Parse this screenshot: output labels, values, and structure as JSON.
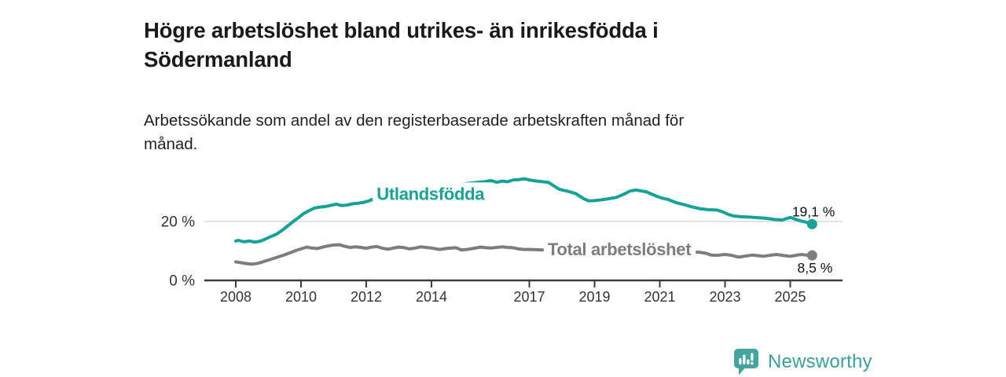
{
  "header": {
    "title_lines": [
      "Högre arbetslöshet bland utrikes- än inrikesfödda i",
      "Södermanland"
    ],
    "subtitle_lines": [
      "Arbetssökande som andel av den registerbaserade arbetskraften månad för",
      "månad."
    ]
  },
  "footer": {
    "brand": "Newsworthy",
    "logo_icon": "newsworthy-speech-bubble-bar-chart-icon",
    "brand_color": "#38a199"
  },
  "chart_data": {
    "type": "line",
    "title": "Högre arbetslöshet bland utrikes- än inrikesfödda i Södermanland",
    "subtitle": "Arbetssökande som andel av den registerbaserade arbetskraften månad för månad.",
    "unit": "%",
    "grid": "horizontal-only",
    "legend_position": "inline-labels-on-lines",
    "colors": {
      "accent_teal": "#16a296",
      "neutral_gray": "#7d7d7d",
      "axis": "#3d3d3d",
      "gridline": "#d8d8d8",
      "value_label": "#111111"
    },
    "x_axis": {
      "range_years": [
        2006.9,
        2026.6
      ],
      "ticks": [
        {
          "year": 2008,
          "label": "2008"
        },
        {
          "year": 2010,
          "label": "2010"
        },
        {
          "year": 2012,
          "label": "2012"
        },
        {
          "year": 2014,
          "label": "2014"
        },
        {
          "year": 2017,
          "label": "2017"
        },
        {
          "year": 2019,
          "label": "2019"
        },
        {
          "year": 2021,
          "label": "2021"
        },
        {
          "year": 2023,
          "label": "2023"
        },
        {
          "year": 2025,
          "label": "2025"
        }
      ]
    },
    "y_axis": {
      "range": [
        0,
        40
      ],
      "ticks": [
        {
          "value": 0,
          "label": "0 %"
        },
        {
          "value": 20,
          "label": "20 %"
        }
      ]
    },
    "series": [
      {
        "name": "Utlandsfödda",
        "color": "#16a296",
        "end_value": 19.1,
        "end_label": "19,1 %",
        "end_label_side": "above",
        "label_anchor": {
          "year": 2013.97,
          "value": 29.4
        },
        "points": [
          [
            2008.0,
            13.4
          ],
          [
            2008.08,
            13.6
          ],
          [
            2008.25,
            13.1
          ],
          [
            2008.42,
            13.4
          ],
          [
            2008.58,
            13.0
          ],
          [
            2008.75,
            13.3
          ],
          [
            2008.92,
            14.1
          ],
          [
            2009.08,
            14.9
          ],
          [
            2009.25,
            15.7
          ],
          [
            2009.42,
            17.0
          ],
          [
            2009.58,
            18.4
          ],
          [
            2009.75,
            19.9
          ],
          [
            2009.92,
            21.3
          ],
          [
            2010.08,
            22.7
          ],
          [
            2010.25,
            23.7
          ],
          [
            2010.42,
            24.6
          ],
          [
            2010.58,
            24.9
          ],
          [
            2010.75,
            25.1
          ],
          [
            2010.92,
            25.5
          ],
          [
            2011.08,
            25.9
          ],
          [
            2011.25,
            25.4
          ],
          [
            2011.42,
            25.6
          ],
          [
            2011.58,
            26.0
          ],
          [
            2011.75,
            26.2
          ],
          [
            2011.92,
            26.5
          ],
          [
            2012.08,
            27.0
          ],
          [
            2012.17,
            27.5
          ],
          [
            2012.25,
            26.9
          ],
          [
            2012.42,
            27.1
          ],
          [
            2012.67,
            27.5
          ],
          [
            2012.92,
            28.0
          ],
          [
            2013.17,
            28.6
          ],
          [
            2013.42,
            29.2
          ],
          [
            2013.67,
            29.8
          ],
          [
            2013.92,
            30.4
          ],
          [
            2014.17,
            31.0
          ],
          [
            2014.42,
            31.6
          ],
          [
            2014.67,
            32.2
          ],
          [
            2014.92,
            32.7
          ],
          [
            2015.17,
            33.0
          ],
          [
            2015.42,
            33.3
          ],
          [
            2015.63,
            33.5
          ],
          [
            2015.83,
            33.9
          ],
          [
            2016.0,
            33.3
          ],
          [
            2016.17,
            33.7
          ],
          [
            2016.33,
            33.5
          ],
          [
            2016.5,
            34.1
          ],
          [
            2016.67,
            34.2
          ],
          [
            2016.83,
            34.5
          ],
          [
            2017.0,
            34.1
          ],
          [
            2017.17,
            33.8
          ],
          [
            2017.33,
            33.6
          ],
          [
            2017.58,
            33.3
          ],
          [
            2017.75,
            32.1
          ],
          [
            2017.92,
            30.9
          ],
          [
            2018.17,
            30.3
          ],
          [
            2018.42,
            29.5
          ],
          [
            2018.67,
            27.7
          ],
          [
            2018.83,
            27.0
          ],
          [
            2019.0,
            27.1
          ],
          [
            2019.17,
            27.3
          ],
          [
            2019.42,
            27.7
          ],
          [
            2019.67,
            28.2
          ],
          [
            2019.92,
            29.4
          ],
          [
            2020.08,
            30.3
          ],
          [
            2020.25,
            30.7
          ],
          [
            2020.42,
            30.4
          ],
          [
            2020.58,
            30.1
          ],
          [
            2020.75,
            29.3
          ],
          [
            2020.92,
            28.5
          ],
          [
            2021.08,
            27.9
          ],
          [
            2021.25,
            27.5
          ],
          [
            2021.5,
            26.4
          ],
          [
            2021.75,
            25.7
          ],
          [
            2022.0,
            24.9
          ],
          [
            2022.25,
            24.3
          ],
          [
            2022.5,
            24.0
          ],
          [
            2022.75,
            23.9
          ],
          [
            2022.92,
            23.3
          ],
          [
            2023.08,
            22.5
          ],
          [
            2023.25,
            21.9
          ],
          [
            2023.5,
            21.6
          ],
          [
            2023.75,
            21.5
          ],
          [
            2024.0,
            21.3
          ],
          [
            2024.25,
            21.1
          ],
          [
            2024.5,
            20.7
          ],
          [
            2024.75,
            20.5
          ],
          [
            2025.0,
            21.4
          ],
          [
            2025.17,
            20.7
          ],
          [
            2025.33,
            20.2
          ],
          [
            2025.5,
            19.7
          ],
          [
            2025.67,
            19.1
          ]
        ]
      },
      {
        "name": "Total arbetslöshet",
        "color": "#7d7d7d",
        "end_value": 8.5,
        "end_label": "8,5 %",
        "end_label_side": "below",
        "label_anchor": {
          "year": 2019.76,
          "value": 10.5
        },
        "points": [
          [
            2008.0,
            6.3
          ],
          [
            2008.17,
            6.0
          ],
          [
            2008.33,
            5.7
          ],
          [
            2008.5,
            5.5
          ],
          [
            2008.67,
            5.8
          ],
          [
            2008.83,
            6.3
          ],
          [
            2009.0,
            6.9
          ],
          [
            2009.17,
            7.5
          ],
          [
            2009.33,
            8.1
          ],
          [
            2009.5,
            8.7
          ],
          [
            2009.67,
            9.4
          ],
          [
            2009.83,
            10.1
          ],
          [
            2010.0,
            10.7
          ],
          [
            2010.17,
            11.3
          ],
          [
            2010.33,
            11.0
          ],
          [
            2010.5,
            10.8
          ],
          [
            2010.67,
            11.3
          ],
          [
            2010.83,
            11.7
          ],
          [
            2011.0,
            12.0
          ],
          [
            2011.17,
            12.1
          ],
          [
            2011.33,
            11.6
          ],
          [
            2011.5,
            11.2
          ],
          [
            2011.67,
            11.4
          ],
          [
            2011.83,
            11.2
          ],
          [
            2012.0,
            10.9
          ],
          [
            2012.17,
            11.3
          ],
          [
            2012.33,
            11.5
          ],
          [
            2012.5,
            10.9
          ],
          [
            2012.67,
            10.6
          ],
          [
            2012.83,
            11.0
          ],
          [
            2013.0,
            11.3
          ],
          [
            2013.17,
            11.1
          ],
          [
            2013.33,
            10.7
          ],
          [
            2013.5,
            11.0
          ],
          [
            2013.67,
            11.4
          ],
          [
            2013.83,
            11.2
          ],
          [
            2014.0,
            11.0
          ],
          [
            2014.25,
            10.5
          ],
          [
            2014.5,
            10.9
          ],
          [
            2014.75,
            11.1
          ],
          [
            2014.92,
            10.3
          ],
          [
            2015.08,
            10.5
          ],
          [
            2015.25,
            10.8
          ],
          [
            2015.5,
            11.3
          ],
          [
            2015.67,
            11.1
          ],
          [
            2015.83,
            11.0
          ],
          [
            2016.0,
            11.2
          ],
          [
            2016.17,
            11.4
          ],
          [
            2016.33,
            11.2
          ],
          [
            2016.5,
            11.1
          ],
          [
            2016.67,
            10.7
          ],
          [
            2016.83,
            10.5
          ],
          [
            2017.0,
            10.5
          ],
          [
            2017.25,
            10.4
          ],
          [
            2017.5,
            10.3
          ],
          [
            2017.75,
            10.1
          ],
          [
            2018.0,
            9.9
          ],
          [
            2018.25,
            9.8
          ],
          [
            2018.5,
            9.7
          ],
          [
            2018.75,
            9.6
          ],
          [
            2019.0,
            9.5
          ],
          [
            2019.25,
            9.4
          ],
          [
            2019.5,
            9.4
          ],
          [
            2019.75,
            9.6
          ],
          [
            2020.0,
            10.0
          ],
          [
            2020.25,
            11.0
          ],
          [
            2020.5,
            11.4
          ],
          [
            2020.75,
            11.2
          ],
          [
            2021.0,
            10.9
          ],
          [
            2021.25,
            10.6
          ],
          [
            2021.5,
            10.2
          ],
          [
            2021.75,
            9.9
          ],
          [
            2022.0,
            9.7
          ],
          [
            2022.25,
            9.5
          ],
          [
            2022.42,
            9.2
          ],
          [
            2022.58,
            8.6
          ],
          [
            2022.75,
            8.5
          ],
          [
            2023.0,
            8.8
          ],
          [
            2023.17,
            8.6
          ],
          [
            2023.42,
            7.9
          ],
          [
            2023.58,
            8.2
          ],
          [
            2023.83,
            8.6
          ],
          [
            2024.0,
            8.4
          ],
          [
            2024.17,
            8.2
          ],
          [
            2024.42,
            8.6
          ],
          [
            2024.58,
            8.8
          ],
          [
            2024.83,
            8.4
          ],
          [
            2025.0,
            8.2
          ],
          [
            2025.17,
            8.5
          ],
          [
            2025.33,
            8.8
          ],
          [
            2025.5,
            8.6
          ],
          [
            2025.67,
            8.5
          ]
        ]
      }
    ]
  }
}
